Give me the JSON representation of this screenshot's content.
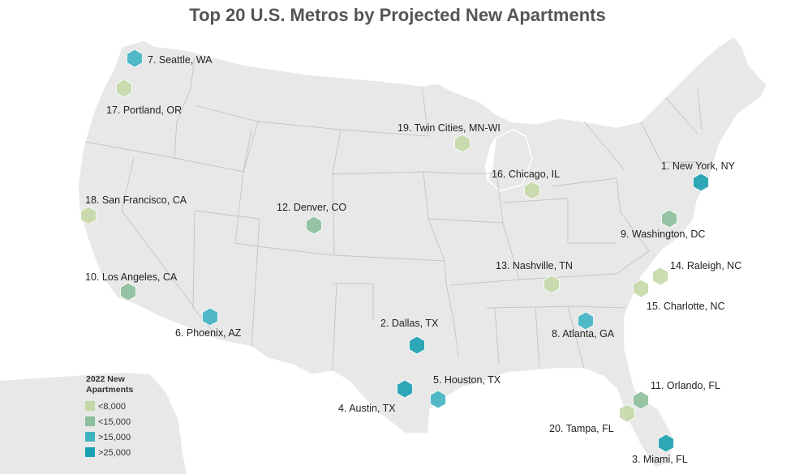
{
  "title": "Top 20 U.S. Metros by Projected New Apartments",
  "legend": {
    "title_line1": "2022 New",
    "title_line2": "Apartments",
    "items": [
      {
        "label": "<8,000",
        "color": "#c5d8a8"
      },
      {
        "label": "<15,000",
        "color": "#8cbf9b"
      },
      {
        "label": ">15,000",
        "color": "#3fb3c2"
      },
      {
        "label": ">25,000",
        "color": "#1aa0b0"
      }
    ]
  },
  "metros": [
    {
      "rank": 1,
      "label": "1. New York, NY",
      "category": ">25,000"
    },
    {
      "rank": 2,
      "label": "2. Dallas, TX",
      "category": ">25,000"
    },
    {
      "rank": 3,
      "label": "3. Miami, FL",
      "category": ">25,000"
    },
    {
      "rank": 4,
      "label": "4. Austin, TX",
      "category": ">25,000"
    },
    {
      "rank": 5,
      "label": "5. Houston, TX",
      "category": ">15,000"
    },
    {
      "rank": 6,
      "label": "6. Phoenix, AZ",
      "category": ">15,000"
    },
    {
      "rank": 7,
      "label": "7. Seattle, WA",
      "category": ">15,000"
    },
    {
      "rank": 8,
      "label": "8. Atlanta, GA",
      "category": ">15,000"
    },
    {
      "rank": 9,
      "label": "9. Washington, DC",
      "category": "<15,000"
    },
    {
      "rank": 10,
      "label": "10. Los Angeles, CA",
      "category": "<15,000"
    },
    {
      "rank": 11,
      "label": "11. Orlando, FL",
      "category": "<15,000"
    },
    {
      "rank": 12,
      "label": "12. Denver, CO",
      "category": "<15,000"
    },
    {
      "rank": 13,
      "label": "13. Nashville, TN",
      "category": "<8,000"
    },
    {
      "rank": 14,
      "label": "14. Raleigh, NC",
      "category": "<8,000"
    },
    {
      "rank": 15,
      "label": "15. Charlotte, NC",
      "category": "<8,000"
    },
    {
      "rank": 16,
      "label": "16. Chicago, IL",
      "category": "<8,000"
    },
    {
      "rank": 17,
      "label": "17. Portland, OR",
      "category": "<8,000"
    },
    {
      "rank": 18,
      "label": "18. San Francisco, CA",
      "category": "<8,000"
    },
    {
      "rank": 19,
      "label": "19. Twin Cities, MN-WI",
      "category": "<8,000"
    },
    {
      "rank": 20,
      "label": "20. Tampa, FL",
      "category": "<8,000"
    }
  ]
}
